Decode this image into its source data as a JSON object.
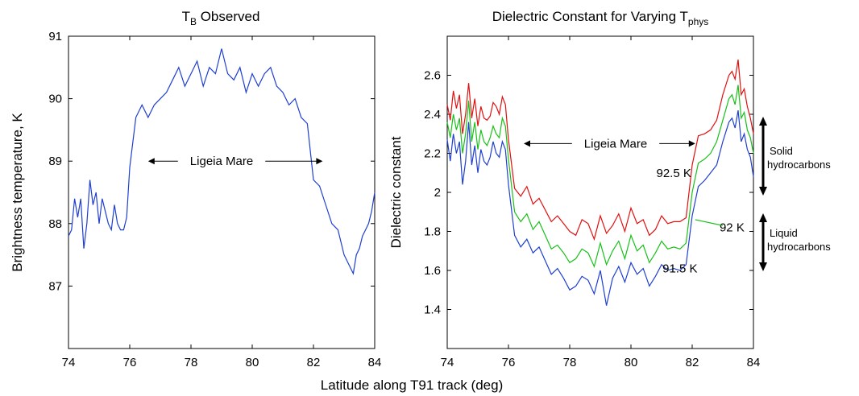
{
  "figure": {
    "shared_xlabel": "Latitude along T91 track (deg)"
  },
  "chart_data": [
    {
      "type": "line",
      "title": "T",
      "title_sub": "B",
      "title_rest": " Observed",
      "xlabel": "",
      "ylabel": "Brightness temperature, K",
      "xlim": [
        74,
        84
      ],
      "ylim": [
        86,
        91
      ],
      "xticks": [
        74,
        76,
        78,
        80,
        82,
        84
      ],
      "yticks": [
        87,
        88,
        89,
        90,
        91
      ],
      "grid": false,
      "series": [
        {
          "color": "#1f3fd0",
          "x": [
            74.0,
            74.1,
            74.2,
            74.3,
            74.4,
            74.5,
            74.6,
            74.7,
            74.8,
            74.9,
            75.0,
            75.1,
            75.2,
            75.3,
            75.4,
            75.5,
            75.6,
            75.7,
            75.8,
            75.9,
            76.0,
            76.2,
            76.4,
            76.6,
            76.8,
            77.0,
            77.2,
            77.4,
            77.6,
            77.8,
            78.0,
            78.2,
            78.4,
            78.6,
            78.8,
            79.0,
            79.2,
            79.4,
            79.6,
            79.8,
            80.0,
            80.2,
            80.4,
            80.6,
            80.8,
            81.0,
            81.2,
            81.4,
            81.6,
            81.8,
            82.0,
            82.2,
            82.4,
            82.6,
            82.8,
            83.0,
            83.2,
            83.3,
            83.4,
            83.5,
            83.6,
            83.7,
            83.8,
            83.9,
            84.0
          ],
          "y": [
            87.8,
            87.9,
            88.4,
            88.1,
            88.4,
            87.6,
            88.0,
            88.7,
            88.3,
            88.5,
            88.0,
            88.4,
            88.2,
            88.0,
            87.9,
            88.3,
            88.0,
            87.9,
            87.9,
            88.1,
            88.9,
            89.7,
            89.9,
            89.7,
            89.9,
            90.0,
            90.1,
            90.3,
            90.5,
            90.2,
            90.4,
            90.6,
            90.2,
            90.5,
            90.4,
            90.8,
            90.4,
            90.3,
            90.5,
            90.1,
            90.4,
            90.2,
            90.4,
            90.5,
            90.2,
            90.1,
            89.9,
            90.0,
            89.7,
            89.6,
            88.7,
            88.6,
            88.3,
            88.0,
            87.9,
            87.5,
            87.3,
            87.2,
            87.5,
            87.6,
            87.8,
            87.9,
            88.0,
            88.2,
            88.5
          ]
        }
      ],
      "annotations": [
        {
          "text": "Ligeia Mare",
          "x": 79.0,
          "y": 89.0,
          "arrow_from": 76.6,
          "arrow_to": 82.3
        }
      ]
    },
    {
      "type": "line",
      "title": "Dielectric Constant for Varying T",
      "title_sub": "phys",
      "xlabel": "",
      "ylabel": "Dielectric constant",
      "xlim": [
        74,
        84
      ],
      "ylim": [
        1.2,
        2.8
      ],
      "xticks": [
        74,
        76,
        78,
        80,
        82,
        84
      ],
      "yticks": [
        1.4,
        1.6,
        1.8,
        2.0,
        2.2,
        2.4,
        2.6
      ],
      "ytick_labels": [
        "1.4",
        "1.6",
        "1.8",
        "2",
        "2.2",
        "2.4",
        "2.6"
      ],
      "grid": false,
      "series": [
        {
          "name": "92.5 K",
          "color": "#e01010",
          "x": [
            74.0,
            74.1,
            74.2,
            74.3,
            74.4,
            74.5,
            74.6,
            74.7,
            74.8,
            74.9,
            75.0,
            75.1,
            75.2,
            75.3,
            75.4,
            75.5,
            75.6,
            75.7,
            75.8,
            75.9,
            76.0,
            76.2,
            76.4,
            76.6,
            76.8,
            77.0,
            77.2,
            77.4,
            77.6,
            77.8,
            78.0,
            78.2,
            78.4,
            78.6,
            78.8,
            79.0,
            79.2,
            79.4,
            79.6,
            79.8,
            80.0,
            80.2,
            80.4,
            80.6,
            80.8,
            81.0,
            81.2,
            81.4,
            81.6,
            81.8,
            82.0,
            82.2,
            82.4,
            82.6,
            82.8,
            83.0,
            83.2,
            83.3,
            83.4,
            83.5,
            83.6,
            83.7,
            83.8,
            83.9,
            84.0
          ],
          "y": [
            2.45,
            2.37,
            2.52,
            2.43,
            2.5,
            2.3,
            2.4,
            2.56,
            2.38,
            2.48,
            2.34,
            2.44,
            2.38,
            2.37,
            2.39,
            2.46,
            2.44,
            2.4,
            2.49,
            2.45,
            2.27,
            2.02,
            1.98,
            2.03,
            1.94,
            1.97,
            1.91,
            1.85,
            1.88,
            1.84,
            1.8,
            1.78,
            1.86,
            1.84,
            1.76,
            1.88,
            1.79,
            1.83,
            1.89,
            1.8,
            1.92,
            1.84,
            1.86,
            1.78,
            1.81,
            1.88,
            1.84,
            1.85,
            1.85,
            1.87,
            2.14,
            2.29,
            2.3,
            2.32,
            2.37,
            2.5,
            2.6,
            2.62,
            2.58,
            2.68,
            2.5,
            2.53,
            2.44,
            2.38,
            2.3
          ]
        },
        {
          "name": "92 K",
          "color": "#18c018",
          "x": [
            74.0,
            74.1,
            74.2,
            74.3,
            74.4,
            74.5,
            74.6,
            74.7,
            74.8,
            74.9,
            75.0,
            75.1,
            75.2,
            75.3,
            75.4,
            75.5,
            75.6,
            75.7,
            75.8,
            75.9,
            76.0,
            76.2,
            76.4,
            76.6,
            76.8,
            77.0,
            77.2,
            77.4,
            77.6,
            77.8,
            78.0,
            78.2,
            78.4,
            78.6,
            78.8,
            79.0,
            79.2,
            79.4,
            79.6,
            79.8,
            80.0,
            80.2,
            80.4,
            80.6,
            80.8,
            81.0,
            81.2,
            81.4,
            81.6,
            81.8,
            82.0,
            82.2,
            82.4,
            82.6,
            82.8,
            83.0,
            83.2,
            83.3,
            83.4,
            83.5,
            83.6,
            83.7,
            83.8,
            83.9,
            84.0
          ],
          "y": [
            2.36,
            2.28,
            2.4,
            2.32,
            2.38,
            2.2,
            2.3,
            2.47,
            2.26,
            2.36,
            2.22,
            2.32,
            2.26,
            2.24,
            2.28,
            2.34,
            2.3,
            2.28,
            2.38,
            2.34,
            2.17,
            1.9,
            1.85,
            1.89,
            1.81,
            1.85,
            1.78,
            1.71,
            1.73,
            1.69,
            1.64,
            1.66,
            1.71,
            1.69,
            1.62,
            1.74,
            1.63,
            1.7,
            1.75,
            1.66,
            1.78,
            1.7,
            1.73,
            1.64,
            1.69,
            1.75,
            1.71,
            1.72,
            1.71,
            1.74,
            2.0,
            2.15,
            2.17,
            2.2,
            2.26,
            2.37,
            2.48,
            2.5,
            2.45,
            2.55,
            2.38,
            2.41,
            2.32,
            2.28,
            2.2
          ]
        },
        {
          "name": "91.5 K",
          "color": "#1f3fd0",
          "x": [
            74.0,
            74.1,
            74.2,
            74.3,
            74.4,
            74.5,
            74.6,
            74.7,
            74.8,
            74.9,
            75.0,
            75.1,
            75.2,
            75.3,
            75.4,
            75.5,
            75.6,
            75.7,
            75.8,
            75.9,
            76.0,
            76.2,
            76.4,
            76.6,
            76.8,
            77.0,
            77.2,
            77.4,
            77.6,
            77.8,
            78.0,
            78.2,
            78.4,
            78.6,
            78.8,
            79.0,
            79.2,
            79.4,
            79.6,
            79.8,
            80.0,
            80.2,
            80.4,
            80.6,
            80.8,
            81.0,
            81.2,
            81.4,
            81.6,
            81.8,
            82.0,
            82.2,
            82.4,
            82.6,
            82.8,
            83.0,
            83.2,
            83.3,
            83.4,
            83.5,
            83.6,
            83.7,
            83.8,
            83.9,
            84.0
          ],
          "y": [
            2.27,
            2.16,
            2.3,
            2.2,
            2.26,
            2.04,
            2.16,
            2.36,
            2.14,
            2.24,
            2.1,
            2.22,
            2.16,
            2.14,
            2.18,
            2.26,
            2.2,
            2.18,
            2.26,
            2.22,
            2.04,
            1.78,
            1.72,
            1.76,
            1.69,
            1.72,
            1.65,
            1.58,
            1.61,
            1.56,
            1.5,
            1.52,
            1.57,
            1.55,
            1.48,
            1.6,
            1.42,
            1.56,
            1.62,
            1.54,
            1.64,
            1.58,
            1.61,
            1.52,
            1.57,
            1.63,
            1.6,
            1.61,
            1.6,
            1.63,
            1.88,
            2.03,
            2.06,
            2.1,
            2.14,
            2.26,
            2.36,
            2.38,
            2.33,
            2.42,
            2.26,
            2.3,
            2.22,
            2.18,
            2.08
          ]
        }
      ],
      "annotations": [
        {
          "text": "Ligeia Mare",
          "x": 79.5,
          "y": 2.25,
          "arrow_from": 76.5,
          "arrow_to": 82.1
        },
        {
          "text": "92.5 K",
          "x": 81.4,
          "y": 2.1
        },
        {
          "text": "92 K",
          "x": 83.3,
          "y": 1.82
        },
        {
          "text": "91.5 K",
          "x": 81.6,
          "y": 1.61
        }
      ],
      "side_labels": [
        {
          "text": [
            "Solid",
            "hydrocarbons"
          ]
        },
        {
          "text": [
            "Liquid",
            "hydrocarbons"
          ]
        }
      ]
    }
  ]
}
